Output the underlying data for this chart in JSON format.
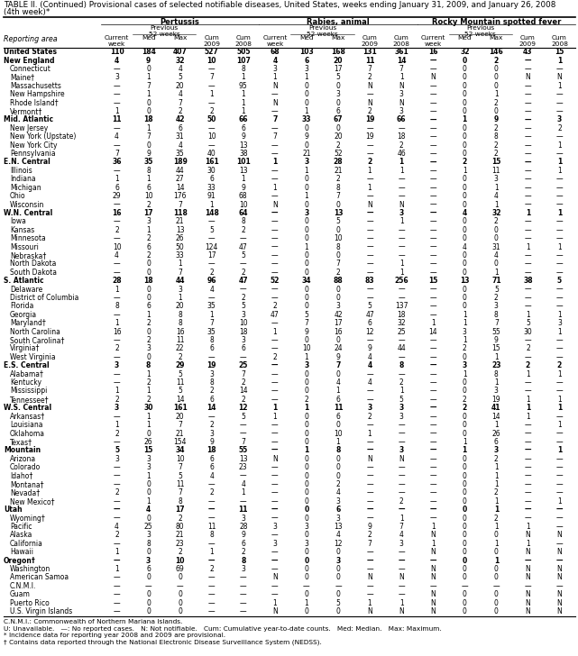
{
  "title_line1": "TABLE II. (Continued) Provisional cases of selected notifiable diseases, United States, weeks ending January 31, 2009, and January 26, 2008",
  "title_line2": "(4th week)*",
  "col_groups": [
    "Pertussis",
    "Rabies, animal",
    "Rocky Mountain spotted fever"
  ],
  "rows": [
    [
      "United States",
      "110",
      "184",
      "407",
      "527",
      "505",
      "68",
      "103",
      "168",
      "131",
      "361",
      "16",
      "32",
      "146",
      "43",
      "15"
    ],
    [
      "New England",
      "4",
      "9",
      "32",
      "10",
      "107",
      "4",
      "6",
      "20",
      "11",
      "14",
      "—",
      "0",
      "2",
      "—",
      "1"
    ],
    [
      "Connecticut",
      "—",
      "0",
      "4",
      "—",
      "8",
      "3",
      "3",
      "17",
      "7",
      "7",
      "—",
      "0",
      "0",
      "—",
      "—"
    ],
    [
      "Maine†",
      "3",
      "1",
      "5",
      "7",
      "1",
      "1",
      "1",
      "5",
      "2",
      "1",
      "N",
      "0",
      "0",
      "N",
      "N"
    ],
    [
      "Massachusetts",
      "—",
      "7",
      "20",
      "—",
      "95",
      "N",
      "0",
      "0",
      "N",
      "N",
      "—",
      "0",
      "0",
      "—",
      "1"
    ],
    [
      "New Hampshire",
      "—",
      "1",
      "4",
      "1",
      "1",
      "—",
      "0",
      "3",
      "—",
      "3",
      "—",
      "0",
      "1",
      "—",
      "—"
    ],
    [
      "Rhode Island†",
      "—",
      "0",
      "7",
      "—",
      "1",
      "N",
      "0",
      "0",
      "N",
      "N",
      "—",
      "0",
      "2",
      "—",
      "—"
    ],
    [
      "Vermont†",
      "1",
      "0",
      "2",
      "2",
      "1",
      "—",
      "1",
      "6",
      "2",
      "3",
      "—",
      "0",
      "0",
      "—",
      "—"
    ],
    [
      "Mid. Atlantic",
      "11",
      "18",
      "42",
      "50",
      "66",
      "7",
      "33",
      "67",
      "19",
      "66",
      "—",
      "1",
      "9",
      "—",
      "3"
    ],
    [
      "New Jersey",
      "—",
      "1",
      "6",
      "—",
      "6",
      "—",
      "0",
      "0",
      "—",
      "—",
      "—",
      "0",
      "2",
      "—",
      "2"
    ],
    [
      "New York (Upstate)",
      "4",
      "7",
      "31",
      "10",
      "9",
      "7",
      "9",
      "20",
      "19",
      "18",
      "—",
      "0",
      "8",
      "—",
      "—"
    ],
    [
      "New York City",
      "—",
      "0",
      "4",
      "—",
      "13",
      "—",
      "0",
      "2",
      "—",
      "2",
      "—",
      "0",
      "2",
      "—",
      "1"
    ],
    [
      "Pennsylvania",
      "7",
      "9",
      "35",
      "40",
      "38",
      "—",
      "21",
      "52",
      "—",
      "46",
      "—",
      "0",
      "2",
      "—",
      "—"
    ],
    [
      "E.N. Central",
      "36",
      "35",
      "189",
      "161",
      "101",
      "1",
      "3",
      "28",
      "2",
      "1",
      "—",
      "2",
      "15",
      "—",
      "1"
    ],
    [
      "Illinois",
      "—",
      "8",
      "44",
      "30",
      "13",
      "—",
      "1",
      "21",
      "1",
      "1",
      "—",
      "1",
      "11",
      "—",
      "1"
    ],
    [
      "Indiana",
      "1",
      "1",
      "27",
      "6",
      "1",
      "—",
      "0",
      "2",
      "—",
      "—",
      "—",
      "0",
      "3",
      "—",
      "—"
    ],
    [
      "Michigan",
      "6",
      "6",
      "14",
      "33",
      "9",
      "1",
      "0",
      "8",
      "1",
      "—",
      "—",
      "0",
      "1",
      "—",
      "—"
    ],
    [
      "Ohio",
      "29",
      "10",
      "176",
      "91",
      "68",
      "—",
      "1",
      "7",
      "—",
      "—",
      "—",
      "0",
      "4",
      "—",
      "—"
    ],
    [
      "Wisconsin",
      "—",
      "2",
      "7",
      "1",
      "10",
      "N",
      "0",
      "0",
      "N",
      "N",
      "—",
      "0",
      "1",
      "—",
      "—"
    ],
    [
      "W.N. Central",
      "16",
      "17",
      "118",
      "148",
      "64",
      "—",
      "3",
      "13",
      "—",
      "3",
      "—",
      "4",
      "32",
      "1",
      "1"
    ],
    [
      "Iowa",
      "—",
      "3",
      "21",
      "—",
      "8",
      "—",
      "0",
      "5",
      "—",
      "1",
      "—",
      "0",
      "2",
      "—",
      "—"
    ],
    [
      "Kansas",
      "2",
      "1",
      "13",
      "5",
      "2",
      "—",
      "0",
      "0",
      "—",
      "—",
      "—",
      "0",
      "0",
      "—",
      "—"
    ],
    [
      "Minnesota",
      "—",
      "2",
      "26",
      "—",
      "—",
      "—",
      "0",
      "10",
      "—",
      "—",
      "—",
      "0",
      "0",
      "—",
      "—"
    ],
    [
      "Missouri",
      "10",
      "6",
      "50",
      "124",
      "47",
      "—",
      "1",
      "8",
      "—",
      "—",
      "—",
      "4",
      "31",
      "1",
      "1"
    ],
    [
      "Nebraska†",
      "4",
      "2",
      "33",
      "17",
      "5",
      "—",
      "0",
      "0",
      "—",
      "—",
      "—",
      "0",
      "4",
      "—",
      "—"
    ],
    [
      "North Dakota",
      "—",
      "0",
      "1",
      "—",
      "—",
      "—",
      "0",
      "7",
      "—",
      "1",
      "—",
      "0",
      "0",
      "—",
      "—"
    ],
    [
      "South Dakota",
      "—",
      "0",
      "7",
      "2",
      "2",
      "—",
      "0",
      "2",
      "—",
      "1",
      "—",
      "0",
      "1",
      "—",
      "—"
    ],
    [
      "S. Atlantic",
      "28",
      "18",
      "44",
      "96",
      "47",
      "52",
      "34",
      "88",
      "83",
      "256",
      "15",
      "13",
      "71",
      "38",
      "5"
    ],
    [
      "Delaware",
      "1",
      "0",
      "3",
      "4",
      "—",
      "—",
      "0",
      "0",
      "—",
      "—",
      "—",
      "0",
      "5",
      "—",
      "—"
    ],
    [
      "District of Columbia",
      "—",
      "0",
      "1",
      "—",
      "2",
      "—",
      "0",
      "0",
      "—",
      "—",
      "—",
      "0",
      "2",
      "—",
      "—"
    ],
    [
      "Florida",
      "8",
      "6",
      "20",
      "35",
      "5",
      "2",
      "0",
      "3",
      "5",
      "137",
      "—",
      "0",
      "3",
      "—",
      "—"
    ],
    [
      "Georgia",
      "—",
      "1",
      "8",
      "1",
      "3",
      "47",
      "5",
      "42",
      "47",
      "18",
      "—",
      "1",
      "8",
      "1",
      "1"
    ],
    [
      "Maryland†",
      "1",
      "2",
      "8",
      "7",
      "10",
      "—",
      "7",
      "17",
      "6",
      "32",
      "1",
      "1",
      "7",
      "5",
      "3"
    ],
    [
      "North Carolina",
      "16",
      "0",
      "16",
      "35",
      "18",
      "1",
      "9",
      "16",
      "12",
      "25",
      "14",
      "3",
      "55",
      "30",
      "1"
    ],
    [
      "South Carolina†",
      "—",
      "2",
      "11",
      "8",
      "3",
      "—",
      "0",
      "0",
      "—",
      "—",
      "—",
      "1",
      "9",
      "—",
      "—"
    ],
    [
      "Virginia†",
      "2",
      "3",
      "22",
      "6",
      "6",
      "—",
      "10",
      "24",
      "9",
      "44",
      "—",
      "2",
      "15",
      "2",
      "—"
    ],
    [
      "West Virginia",
      "—",
      "0",
      "2",
      "—",
      "—",
      "2",
      "1",
      "9",
      "4",
      "—",
      "—",
      "0",
      "1",
      "—",
      "—"
    ],
    [
      "E.S. Central",
      "3",
      "8",
      "29",
      "19",
      "25",
      "—",
      "3",
      "7",
      "4",
      "8",
      "—",
      "3",
      "23",
      "2",
      "2"
    ],
    [
      "Alabama†",
      "—",
      "1",
      "5",
      "3",
      "7",
      "—",
      "0",
      "0",
      "—",
      "—",
      "—",
      "1",
      "8",
      "1",
      "1"
    ],
    [
      "Kentucky",
      "—",
      "2",
      "11",
      "8",
      "2",
      "—",
      "0",
      "4",
      "4",
      "2",
      "—",
      "0",
      "1",
      "—",
      "—"
    ],
    [
      "Mississippi",
      "1",
      "1",
      "5",
      "2",
      "14",
      "—",
      "0",
      "1",
      "—",
      "1",
      "—",
      "0",
      "3",
      "—",
      "—"
    ],
    [
      "Tennessee†",
      "2",
      "2",
      "14",
      "6",
      "2",
      "—",
      "2",
      "6",
      "—",
      "5",
      "—",
      "2",
      "19",
      "1",
      "1"
    ],
    [
      "W.S. Central",
      "3",
      "30",
      "161",
      "14",
      "12",
      "1",
      "1",
      "11",
      "3",
      "3",
      "—",
      "2",
      "41",
      "1",
      "1"
    ],
    [
      "Arkansas†",
      "—",
      "1",
      "20",
      "—",
      "5",
      "1",
      "0",
      "6",
      "2",
      "3",
      "—",
      "0",
      "14",
      "1",
      "—"
    ],
    [
      "Louisiana",
      "1",
      "1",
      "7",
      "2",
      "—",
      "—",
      "0",
      "0",
      "—",
      "—",
      "—",
      "0",
      "1",
      "—",
      "1"
    ],
    [
      "Oklahoma",
      "2",
      "0",
      "21",
      "3",
      "—",
      "—",
      "0",
      "10",
      "1",
      "—",
      "—",
      "0",
      "26",
      "—",
      "—"
    ],
    [
      "Texas†",
      "—",
      "26",
      "154",
      "9",
      "7",
      "—",
      "0",
      "1",
      "—",
      "—",
      "—",
      "1",
      "6",
      "—",
      "—"
    ],
    [
      "Mountain",
      "5",
      "15",
      "34",
      "18",
      "55",
      "—",
      "1",
      "8",
      "—",
      "3",
      "—",
      "1",
      "3",
      "—",
      "1"
    ],
    [
      "Arizona",
      "3",
      "3",
      "10",
      "6",
      "13",
      "N",
      "0",
      "0",
      "N",
      "N",
      "—",
      "0",
      "2",
      "—",
      "—"
    ],
    [
      "Colorado",
      "—",
      "3",
      "7",
      "6",
      "23",
      "—",
      "0",
      "0",
      "—",
      "—",
      "—",
      "0",
      "1",
      "—",
      "—"
    ],
    [
      "Idaho†",
      "—",
      "1",
      "5",
      "4",
      "—",
      "—",
      "0",
      "0",
      "—",
      "—",
      "—",
      "0",
      "1",
      "—",
      "—"
    ],
    [
      "Montana†",
      "—",
      "0",
      "11",
      "—",
      "4",
      "—",
      "0",
      "2",
      "—",
      "—",
      "—",
      "0",
      "1",
      "—",
      "—"
    ],
    [
      "Nevada†",
      "2",
      "0",
      "7",
      "2",
      "1",
      "—",
      "0",
      "4",
      "—",
      "—",
      "—",
      "0",
      "2",
      "—",
      "—"
    ],
    [
      "New Mexico†",
      "—",
      "1",
      "8",
      "—",
      "—",
      "—",
      "0",
      "3",
      "—",
      "2",
      "—",
      "0",
      "1",
      "—",
      "1"
    ],
    [
      "Utah",
      "—",
      "4",
      "17",
      "—",
      "11",
      "—",
      "0",
      "6",
      "—",
      "—",
      "—",
      "0",
      "1",
      "—",
      "—"
    ],
    [
      "Wyoming†",
      "—",
      "0",
      "2",
      "—",
      "3",
      "—",
      "0",
      "3",
      "—",
      "1",
      "—",
      "0",
      "2",
      "—",
      "—"
    ],
    [
      "Pacific",
      "4",
      "25",
      "80",
      "11",
      "28",
      "3",
      "3",
      "13",
      "9",
      "7",
      "1",
      "0",
      "1",
      "1",
      "—"
    ],
    [
      "Alaska",
      "2",
      "3",
      "21",
      "8",
      "9",
      "—",
      "0",
      "4",
      "2",
      "4",
      "N",
      "0",
      "0",
      "N",
      "N"
    ],
    [
      "California",
      "—",
      "8",
      "23",
      "—",
      "6",
      "3",
      "3",
      "12",
      "7",
      "3",
      "1",
      "0",
      "1",
      "1",
      "—"
    ],
    [
      "Hawaii",
      "1",
      "0",
      "2",
      "1",
      "2",
      "—",
      "0",
      "0",
      "—",
      "—",
      "N",
      "0",
      "0",
      "N",
      "N"
    ],
    [
      "Oregon†",
      "—",
      "3",
      "10",
      "—",
      "8",
      "—",
      "0",
      "3",
      "—",
      "—",
      "—",
      "0",
      "1",
      "—",
      "—"
    ],
    [
      "Washington",
      "1",
      "6",
      "69",
      "2",
      "3",
      "—",
      "0",
      "0",
      "—",
      "—",
      "N",
      "0",
      "0",
      "N",
      "N"
    ],
    [
      "American Samoa",
      "—",
      "0",
      "0",
      "—",
      "—",
      "N",
      "0",
      "0",
      "N",
      "N",
      "N",
      "0",
      "0",
      "N",
      "N"
    ],
    [
      "C.N.M.I.",
      "—",
      "—",
      "—",
      "—",
      "—",
      "—",
      "—",
      "—",
      "—",
      "—",
      "—",
      "—",
      "—",
      "—",
      "—"
    ],
    [
      "Guam",
      "—",
      "0",
      "0",
      "—",
      "—",
      "—",
      "0",
      "0",
      "—",
      "—",
      "N",
      "0",
      "0",
      "N",
      "N"
    ],
    [
      "Puerto Rico",
      "—",
      "0",
      "0",
      "—",
      "—",
      "1",
      "1",
      "5",
      "1",
      "1",
      "N",
      "0",
      "0",
      "N",
      "N"
    ],
    [
      "U.S. Virgin Islands",
      "—",
      "0",
      "0",
      "—",
      "—",
      "N",
      "0",
      "0",
      "N",
      "N",
      "N",
      "0",
      "0",
      "N",
      "N"
    ]
  ],
  "footnotes": [
    "C.N.M.I.: Commonwealth of Northern Mariana Islands.",
    "U: Unavailable.   —: No reported cases.   N: Not notifiable.   Cum: Cumulative year-to-date counts.   Med: Median.   Max: Maximum.",
    "* Incidence data for reporting year 2008 and 2009 are provisional.",
    "† Contains data reported through the National Electronic Disease Surveillance System (NEDSS)."
  ],
  "section_indices": [
    0,
    1,
    8,
    13,
    19,
    27,
    37,
    42,
    47,
    54,
    60
  ]
}
